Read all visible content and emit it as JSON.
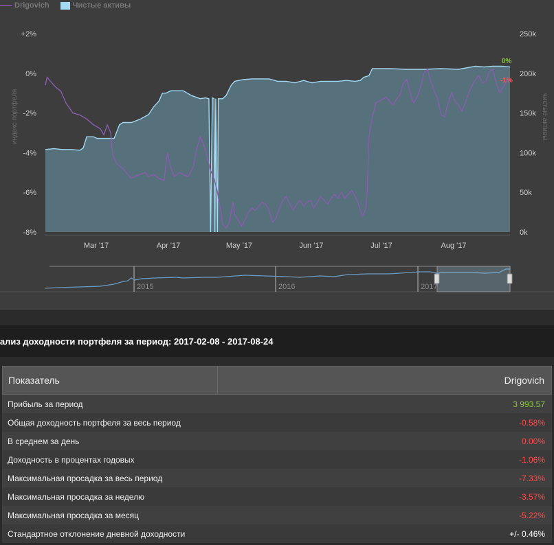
{
  "legend": {
    "series1": "Drigovich",
    "series2": "Чистые активы"
  },
  "chart_data": {
    "type": "line",
    "x_ticks": [
      "Mar '17",
      "Apr '17",
      "May '17",
      "Jun '17",
      "Jul '17",
      "Aug '17"
    ],
    "left_axis": {
      "label": "индекс портфеля",
      "ticks": [
        "+2%",
        "0%",
        "-2%",
        "-4%",
        "-6%",
        "-8%"
      ],
      "range": [
        -8,
        2
      ]
    },
    "right_axis": {
      "label": "чистые активы",
      "ticks": [
        "250k",
        "200k",
        "150k",
        "100k",
        "50k",
        "0k"
      ],
      "range": [
        0,
        250000
      ]
    },
    "series": [
      {
        "name": "Drigovich",
        "axis": "left",
        "color": "#8a5cb0",
        "points": [
          [
            0,
            -0.6
          ],
          [
            0.1,
            -0.2
          ],
          [
            0.3,
            -0.4
          ],
          [
            0.6,
            -0.7
          ],
          [
            0.9,
            -0.9
          ],
          [
            1.2,
            -1.5
          ],
          [
            1.6,
            -2.0
          ],
          [
            2,
            -2.1
          ],
          [
            2.4,
            -2.3
          ],
          [
            2.8,
            -2.6
          ],
          [
            3.2,
            -2.8
          ],
          [
            3.4,
            -3.1
          ],
          [
            3.6,
            -2.6
          ],
          [
            3.8,
            -3.0
          ],
          [
            3.9,
            -4.0
          ],
          [
            4.0,
            -4.3
          ],
          [
            4.2,
            -4.6
          ],
          [
            4.5,
            -4.8
          ],
          [
            4.8,
            -5.1
          ],
          [
            5.0,
            -5.3
          ],
          [
            5.2,
            -5.2
          ],
          [
            5.5,
            -5.1
          ],
          [
            5.8,
            -5.0
          ],
          [
            6.0,
            -5.2
          ],
          [
            6.3,
            -5.1
          ],
          [
            6.6,
            -5.3
          ],
          [
            6.9,
            -5.4
          ],
          [
            7.0,
            -4.6
          ],
          [
            7.1,
            -4.0
          ],
          [
            7.3,
            -4.8
          ],
          [
            7.5,
            -5.2
          ],
          [
            7.8,
            -5.0
          ],
          [
            8.0,
            -5.1
          ],
          [
            8.3,
            -5.2
          ],
          [
            8.6,
            -4.7
          ],
          [
            8.8,
            -3.8
          ],
          [
            9.0,
            -3.2
          ],
          [
            9.2,
            -3.6
          ],
          [
            9.4,
            -4.2
          ],
          [
            9.6,
            -4.9
          ],
          [
            9.8,
            -5.3
          ],
          [
            10.0,
            -6.0
          ],
          [
            10.2,
            -7.0
          ],
          [
            10.3,
            -7.6
          ],
          [
            10.5,
            -7.8
          ],
          [
            10.7,
            -7.5
          ],
          [
            10.9,
            -6.5
          ],
          [
            11.0,
            -7.1
          ],
          [
            11.2,
            -7.4
          ],
          [
            11.4,
            -7.7
          ],
          [
            11.6,
            -7.4
          ],
          [
            11.8,
            -7.0
          ],
          [
            12.0,
            -6.8
          ],
          [
            12.2,
            -6.9
          ],
          [
            12.4,
            -6.7
          ],
          [
            12.6,
            -6.5
          ],
          [
            12.8,
            -6.6
          ],
          [
            13.0,
            -6.9
          ],
          [
            13.2,
            -7.5
          ],
          [
            13.4,
            -7.3
          ],
          [
            13.6,
            -6.8
          ],
          [
            13.8,
            -6.4
          ],
          [
            14.0,
            -6.2
          ],
          [
            14.2,
            -6.6
          ],
          [
            14.4,
            -6.9
          ],
          [
            14.6,
            -6.6
          ],
          [
            14.8,
            -6.4
          ],
          [
            15.0,
            -6.7
          ],
          [
            15.2,
            -6.5
          ],
          [
            15.4,
            -6.4
          ],
          [
            15.6,
            -6.8
          ],
          [
            15.8,
            -6.5
          ],
          [
            16.0,
            -6.2
          ],
          [
            16.2,
            -6.4
          ],
          [
            16.4,
            -6.6
          ],
          [
            16.6,
            -6.3
          ],
          [
            16.8,
            -6.1
          ],
          [
            17.0,
            -6.3
          ],
          [
            17.2,
            -6.0
          ],
          [
            17.4,
            -6.3
          ],
          [
            17.6,
            -6.1
          ],
          [
            17.8,
            -5.9
          ],
          [
            18.0,
            -6.2
          ],
          [
            18.2,
            -6.6
          ],
          [
            18.4,
            -7.2
          ],
          [
            18.6,
            -6.9
          ],
          [
            18.7,
            -6.0
          ],
          [
            18.8,
            -3.2
          ],
          [
            19.0,
            -2.2
          ],
          [
            19.2,
            -1.5
          ],
          [
            19.4,
            -1.4
          ],
          [
            19.6,
            -1.3
          ],
          [
            19.8,
            -1.2
          ],
          [
            20.0,
            -1.4
          ],
          [
            20.2,
            -1.6
          ],
          [
            20.4,
            -1.3
          ],
          [
            20.6,
            -1.1
          ],
          [
            20.8,
            -0.5
          ],
          [
            21.0,
            -0.3
          ],
          [
            21.2,
            -1.0
          ],
          [
            21.4,
            -1.5
          ],
          [
            21.6,
            -1.2
          ],
          [
            21.8,
            -0.7
          ],
          [
            22.0,
            0.0
          ],
          [
            22.2,
            0.2
          ],
          [
            22.4,
            -0.4
          ],
          [
            22.6,
            -0.9
          ],
          [
            22.8,
            -1.3
          ],
          [
            23.0,
            -2.1
          ],
          [
            23.2,
            -2.2
          ],
          [
            23.4,
            -1.5
          ],
          [
            23.6,
            -1.0
          ],
          [
            23.8,
            -1.4
          ],
          [
            24.0,
            -1.6
          ],
          [
            24.2,
            -1.9
          ],
          [
            24.4,
            -1.5
          ],
          [
            24.6,
            -1.0
          ],
          [
            24.8,
            -0.6
          ],
          [
            25.0,
            -0.3
          ],
          [
            25.2,
            -0.1
          ],
          [
            25.4,
            -0.5
          ],
          [
            25.6,
            -0.4
          ],
          [
            25.8,
            0.1
          ],
          [
            26.0,
            0.2
          ],
          [
            26.2,
            -0.5
          ],
          [
            26.4,
            -1.0
          ],
          [
            26.6,
            -0.7
          ],
          [
            26.8,
            -0.4
          ],
          [
            27.0,
            -0.3
          ]
        ]
      },
      {
        "name": "Чистые активы",
        "axis": "right",
        "color": "#a3d9f2",
        "points": [
          [
            0,
            104000
          ],
          [
            0.5,
            105000
          ],
          [
            1,
            104000
          ],
          [
            1.5,
            104000
          ],
          [
            2,
            103000
          ],
          [
            2.2,
            106000
          ],
          [
            2.4,
            120000
          ],
          [
            2.8,
            120000
          ],
          [
            3.0,
            118000
          ],
          [
            3.2,
            118000
          ],
          [
            3.6,
            118000
          ],
          [
            3.8,
            118000
          ],
          [
            4.0,
            118000
          ],
          [
            4.3,
            135000
          ],
          [
            4.5,
            138000
          ],
          [
            5,
            138000
          ],
          [
            5.5,
            142000
          ],
          [
            6.0,
            148000
          ],
          [
            6.3,
            158000
          ],
          [
            6.6,
            165000
          ],
          [
            6.8,
            175000
          ],
          [
            7.0,
            175000
          ],
          [
            7.3,
            178000
          ],
          [
            7.6,
            178000
          ],
          [
            8.0,
            178000
          ],
          [
            8.5,
            172000
          ],
          [
            9.0,
            168000
          ],
          [
            9.3,
            169000
          ],
          [
            9.5,
            168000
          ],
          [
            9.6,
            0
          ],
          [
            9.7,
            169000
          ],
          [
            9.8,
            168000
          ],
          [
            9.85,
            0
          ],
          [
            9.9,
            168000
          ],
          [
            10.0,
            0
          ],
          [
            10.05,
            168000
          ],
          [
            10.3,
            168000
          ],
          [
            10.5,
            172000
          ],
          [
            10.8,
            185000
          ],
          [
            11.0,
            190000
          ],
          [
            11.5,
            192000
          ],
          [
            12.0,
            193000
          ],
          [
            13.0,
            193000
          ],
          [
            13.5,
            190000
          ],
          [
            14.0,
            190000
          ],
          [
            14.5,
            188000
          ],
          [
            15.0,
            191000
          ],
          [
            15.5,
            188000
          ],
          [
            16.0,
            190000
          ],
          [
            16.5,
            190000
          ],
          [
            17.0,
            190000
          ],
          [
            17.5,
            191000
          ],
          [
            18.0,
            190000
          ],
          [
            18.3,
            191000
          ],
          [
            18.5,
            195000
          ],
          [
            18.8,
            197000
          ],
          [
            19.0,
            206000
          ],
          [
            19.5,
            206000
          ],
          [
            20.0,
            206000
          ],
          [
            21.0,
            205000
          ],
          [
            22.0,
            205000
          ],
          [
            23.0,
            206000
          ],
          [
            24.0,
            205000
          ],
          [
            25.0,
            209000
          ],
          [
            25.5,
            208000
          ],
          [
            26.0,
            209000
          ],
          [
            26.5,
            209000
          ],
          [
            27.0,
            208000
          ]
        ]
      }
    ],
    "end_labels": [
      {
        "text": "0%",
        "color": "#8cc63e"
      },
      {
        "text": "-1%",
        "color": "#ff5a5a"
      }
    ]
  },
  "navigator": {
    "labels": [
      "2015",
      "2016",
      "2017"
    ],
    "handle_positions": [
      0.84,
      1.0
    ],
    "colors": {
      "line": "#6d9dc5",
      "selection": "rgba(163,217,242,0.25)"
    }
  },
  "section_title": "нализ доходности портфеля за период: 2017-02-08 - 2017-08-24",
  "table": {
    "header": {
      "col1": "Показатель",
      "col2": "Drigovich"
    },
    "rows": [
      {
        "label": "Прибыль за период",
        "value": "3 993.57",
        "color": "#8cc63e"
      },
      {
        "label": "Общая доходность портфеля за весь период",
        "value": "-0.58%",
        "color": "#ff4a4a"
      },
      {
        "label": "В среднем за день",
        "value": "0.00%",
        "color": "#ff4a4a"
      },
      {
        "label": "Доходность в процентах годовых",
        "value": "-1.06%",
        "color": "#ff4a4a"
      },
      {
        "label": "Максимальная просадка за весь период",
        "value": "-7.33%",
        "color": "#ff4a4a"
      },
      {
        "label": "Максимальная просадка за неделю",
        "value": "-3.57%",
        "color": "#ff4a4a"
      },
      {
        "label": "Максимальная просадка за месяц",
        "value": "-5.22%",
        "color": "#ff4a4a"
      },
      {
        "label": "Стандартное отклонение дневной доходности",
        "value": "+/- 0.46%",
        "color": "#ffffff"
      }
    ]
  }
}
